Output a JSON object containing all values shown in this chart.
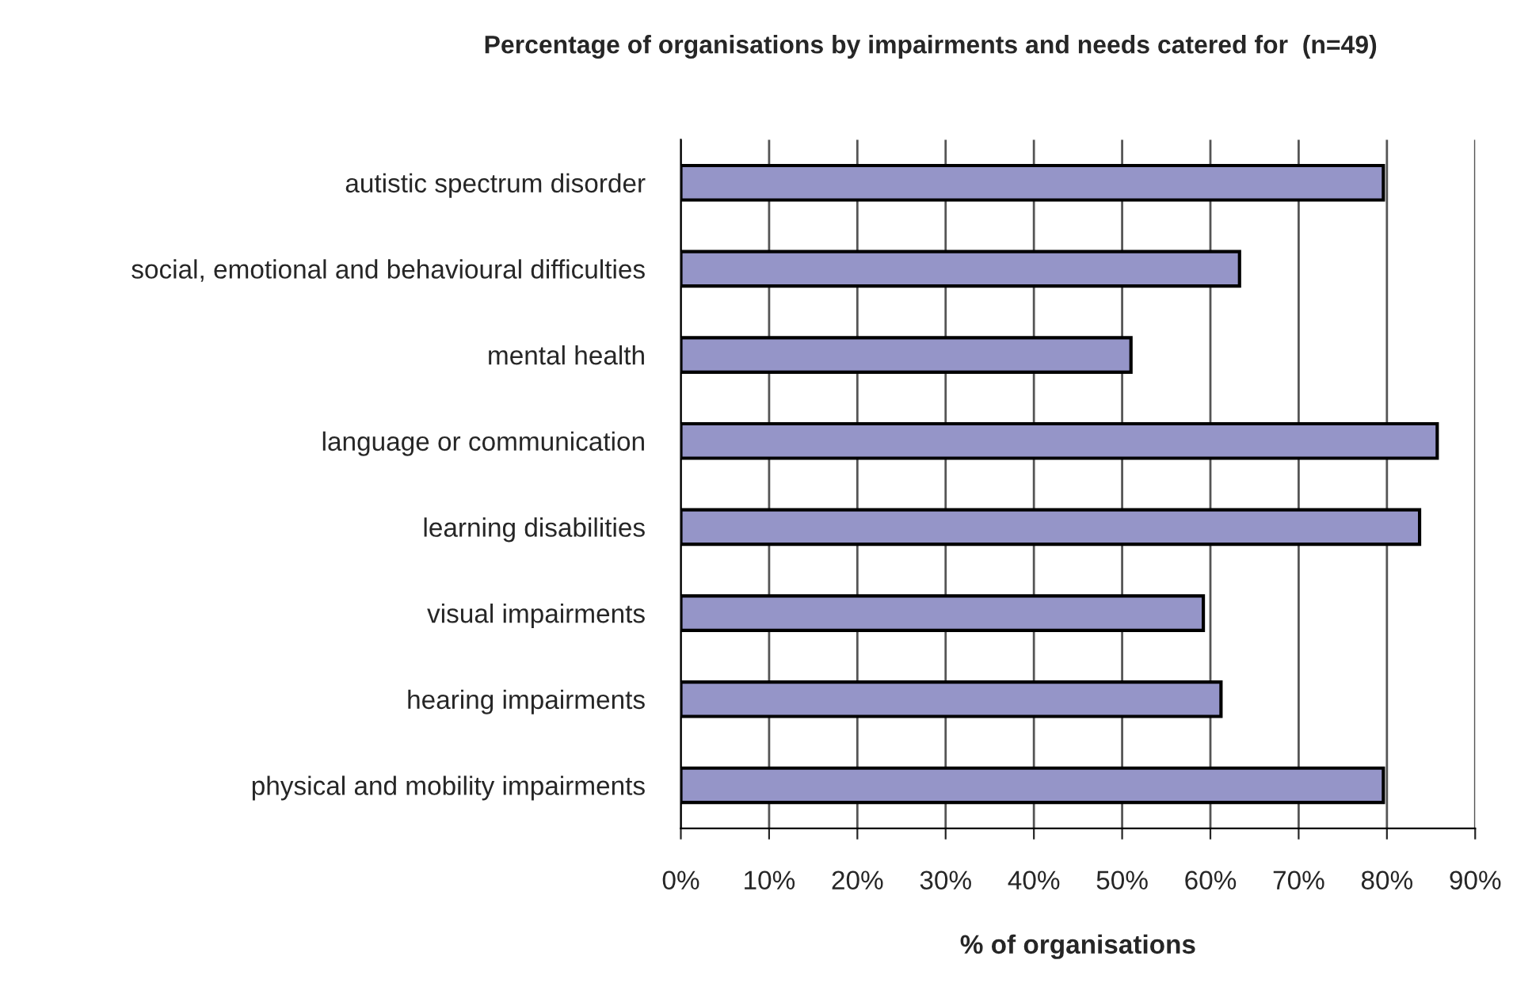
{
  "chart_data": {
    "type": "bar",
    "orientation": "horizontal",
    "title": "Percentage of organisations by impairments and needs catered for  (n=49)",
    "xlabel": "% of organisations",
    "categories": [
      "autistic spectrum disorder",
      "social, emotional and behavioural difficulties",
      "mental health",
      "language or communication",
      "learning disabilities",
      "visual impairments",
      "hearing impairments",
      "physical and mobility impairments"
    ],
    "values": [
      79.6,
      63.3,
      51.0,
      85.7,
      83.7,
      59.2,
      61.2,
      79.6
    ],
    "color": "#9595c8",
    "xlim": [
      0,
      90
    ],
    "xticks": [
      {
        "value": 0,
        "label": "0%"
      },
      {
        "value": 10,
        "label": "10%"
      },
      {
        "value": 20,
        "label": "20%"
      },
      {
        "value": 30,
        "label": "30%"
      },
      {
        "value": 40,
        "label": "40%"
      },
      {
        "value": 50,
        "label": "50%"
      },
      {
        "value": 60,
        "label": "60%"
      },
      {
        "value": 70,
        "label": "70%"
      },
      {
        "value": 80,
        "label": "80%"
      },
      {
        "value": 90,
        "label": "90%"
      }
    ],
    "grid": "x",
    "legend": false
  }
}
